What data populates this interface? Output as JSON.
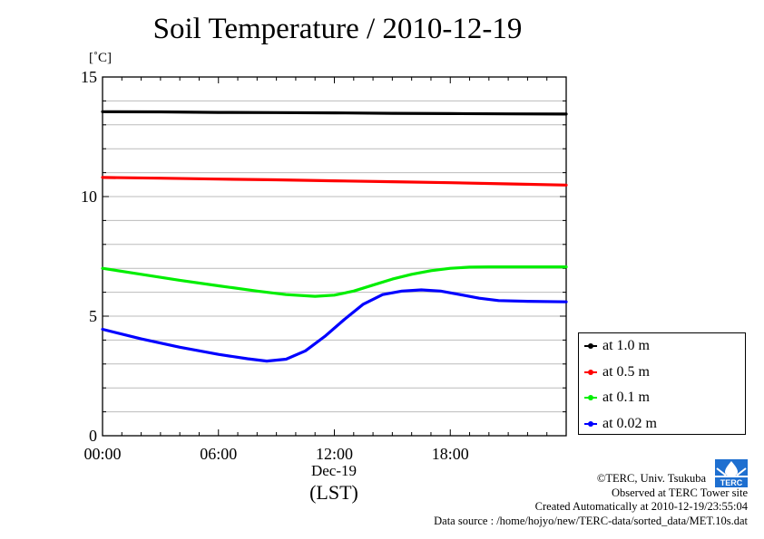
{
  "chart_data": {
    "type": "line",
    "title": "Soil Temperature / 2010-12-19",
    "ylabel_unit": "[˚C]",
    "ylim": [
      0,
      15
    ],
    "yticks": [
      "0",
      "5",
      "10",
      "15"
    ],
    "xlim": [
      0,
      24
    ],
    "xticks": [
      {
        "value": 0,
        "label": "00:00"
      },
      {
        "value": 6,
        "label": "06:00"
      },
      {
        "value": 12,
        "label": "12:00"
      },
      {
        "value": 18,
        "label": "18:00"
      }
    ],
    "xlabel_date": "Dec-19",
    "xlabel": "(LST)",
    "grid": true,
    "legend_position": "bottom-right, outside plot",
    "series": [
      {
        "name": "at 1.0 m",
        "color": "#000000",
        "x": [
          0,
          3,
          6,
          9,
          12,
          15,
          18,
          21,
          24
        ],
        "y": [
          13.55,
          13.54,
          13.52,
          13.51,
          13.5,
          13.48,
          13.47,
          13.46,
          13.45
        ]
      },
      {
        "name": "at 0.5 m",
        "color": "#ff0000",
        "x": [
          0,
          3,
          6,
          9,
          12,
          15,
          18,
          21,
          24
        ],
        "y": [
          10.8,
          10.77,
          10.73,
          10.7,
          10.66,
          10.62,
          10.58,
          10.53,
          10.48
        ]
      },
      {
        "name": "at 0.1 m",
        "color": "#00ee00",
        "x": [
          0,
          2,
          4,
          6,
          8,
          9.5,
          11,
          12,
          13,
          14,
          15,
          16,
          17,
          18,
          19,
          20,
          22,
          24
        ],
        "y": [
          7.0,
          6.75,
          6.5,
          6.27,
          6.05,
          5.9,
          5.83,
          5.88,
          6.05,
          6.3,
          6.55,
          6.75,
          6.9,
          7.0,
          7.05,
          7.06,
          7.06,
          7.06
        ]
      },
      {
        "name": "at 0.02 m",
        "color": "#0000ff",
        "x": [
          0,
          2,
          4,
          6,
          7.5,
          8.5,
          9.5,
          10.5,
          11.5,
          12.5,
          13.5,
          14.5,
          15.5,
          16.5,
          17.5,
          18.5,
          19.5,
          20.5,
          22,
          24
        ],
        "y": [
          4.45,
          4.05,
          3.7,
          3.4,
          3.22,
          3.12,
          3.2,
          3.55,
          4.15,
          4.85,
          5.5,
          5.9,
          6.05,
          6.1,
          6.05,
          5.9,
          5.75,
          5.65,
          5.62,
          5.6
        ]
      }
    ]
  },
  "credits": {
    "copyright": "©TERC, Univ. Tsukuba",
    "observed": "Observed at TERC Tower site",
    "created": "Created Automatically at 2010-12-19/23:55:04",
    "source": "Data source : /home/hojyo/new/TERC-data/sorted_data/MET.10s.dat"
  },
  "logo_text": "TERC"
}
